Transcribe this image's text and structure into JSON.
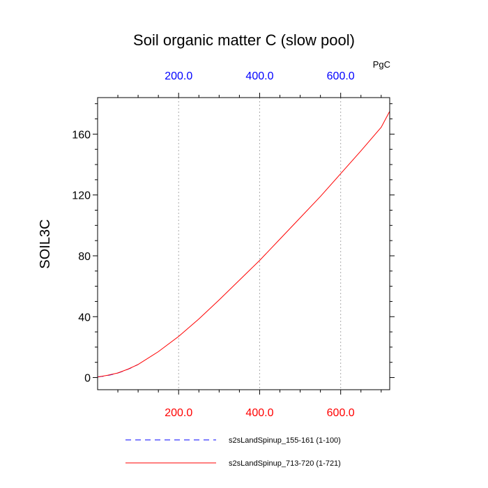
{
  "chart_data": {
    "type": "line",
    "title": "Soil organic matter C (slow pool)",
    "ylabel": "SOIL3C",
    "top_axis_unit": "PgC",
    "xlim": [
      0,
      721
    ],
    "ylim": [
      -8,
      184
    ],
    "grid": "vertical-dotted",
    "y_ticks": [
      0,
      40,
      80,
      120,
      160
    ],
    "y_tick_labels": [
      "0",
      "40",
      "80",
      "120",
      "160"
    ],
    "x_ticks_bottom": [
      200,
      400,
      600
    ],
    "x_tick_labels_bottom": [
      "200.0",
      "400.0",
      "600.0"
    ],
    "x_ticks_top": [
      200,
      400,
      600
    ],
    "x_tick_labels_top": [
      "200.0",
      "400.0",
      "600.0"
    ],
    "colors": {
      "bottom_axis": "#ff0000",
      "top_axis": "#0000ff"
    },
    "series": [
      {
        "name": "s2sLandSpinup_155-161 (1-100)",
        "color": "#0000ff",
        "dash": "dashed",
        "x": [
          1,
          10,
          20,
          30,
          40,
          50,
          60,
          70,
          80,
          90,
          100
        ],
        "y": [
          0.5,
          0.7,
          1.1,
          1.6,
          2.2,
          3.0,
          3.9,
          4.9,
          6.0,
          7.3,
          8.6
        ]
      },
      {
        "name": "s2sLandSpinup_713-720 (1-721)",
        "color": "#ff0000",
        "dash": "solid",
        "x": [
          1,
          25,
          50,
          75,
          100,
          150,
          200,
          250,
          300,
          350,
          400,
          450,
          500,
          550,
          600,
          650,
          700,
          721
        ],
        "y": [
          0.4,
          1.5,
          3.0,
          5.5,
          8.6,
          17.0,
          27.0,
          38.5,
          51.0,
          64.0,
          77.0,
          91.0,
          105.0,
          119.0,
          134.0,
          149.0,
          164.5,
          175.0
        ]
      }
    ],
    "legend": {
      "position": "bottom",
      "entries": [
        "s2sLandSpinup_155-161 (1-100)",
        "s2sLandSpinup_713-720 (1-721)"
      ]
    }
  }
}
